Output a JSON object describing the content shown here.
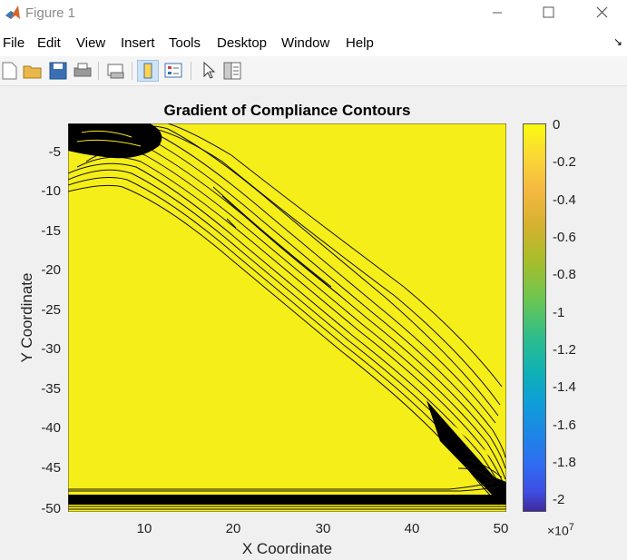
{
  "window": {
    "title": "Figure 1"
  },
  "menu": {
    "items": [
      "File",
      "Edit",
      "View",
      "Insert",
      "Tools",
      "Desktop",
      "Window",
      "Help"
    ]
  },
  "toolbar": {
    "icons": [
      "new-figure-icon",
      "open-file-icon",
      "save-icon",
      "print-icon",
      "link-plot-icon",
      "insert-colorbar-icon",
      "insert-legend-icon",
      "edit-plot-arrow-icon",
      "property-inspector-icon"
    ]
  },
  "chart_data": {
    "type": "contour",
    "title": "Gradient of Compliance Contours",
    "xlabel": "X Coordinate",
    "ylabel": "Y Coordinate",
    "xlim": [
      1,
      51
    ],
    "ylim": [
      -51,
      -1
    ],
    "xticks": [
      "10",
      "20",
      "30",
      "40",
      "50"
    ],
    "yticks": [
      "-5",
      "-10",
      "-15",
      "-20",
      "-25",
      "-30",
      "-35",
      "-40",
      "-45",
      "-50"
    ],
    "colorbar": {
      "ticks": [
        "0",
        "-0.2",
        "-0.4",
        "-0.6",
        "-0.8",
        "-1",
        "-1.2",
        "-1.4",
        "-1.6",
        "-1.8",
        "-2"
      ],
      "exponent_prefix": "×10",
      "exponent_power": "7",
      "colormap": "parula",
      "range": [
        -20500000,
        0
      ]
    },
    "background_color": "#f6ee18",
    "features": [
      "dense contours along diagonal band from (1,-1) to (51,-51)",
      "dense horizontal band near y=-49",
      "dense contours near top-left corner"
    ]
  }
}
